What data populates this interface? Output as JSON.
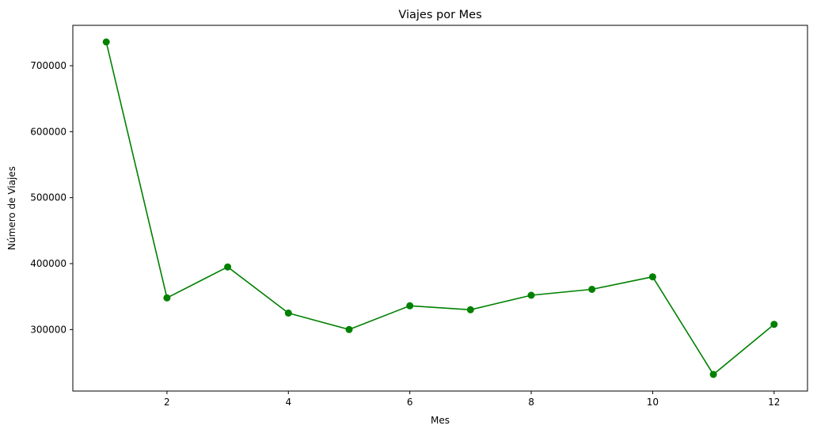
{
  "chart_data": {
    "type": "line",
    "title": "Viajes por Mes",
    "xlabel": "Mes",
    "ylabel": "Número de Viajes",
    "x": [
      1,
      2,
      3,
      4,
      5,
      6,
      7,
      8,
      9,
      10,
      11,
      12
    ],
    "series": [
      {
        "values": [
          736000,
          348000,
          395000,
          325000,
          300000,
          336000,
          330000,
          352000,
          361000,
          380000,
          232000,
          308000
        ],
        "color": "#008000",
        "marker": "circle"
      }
    ],
    "xlim": [
      0.45,
      12.55
    ],
    "ylim": [
      206800,
      761200
    ],
    "xticks": [
      2,
      4,
      6,
      8,
      10,
      12
    ],
    "xtick_labels": [
      "2",
      "4",
      "6",
      "8",
      "10",
      "12"
    ],
    "yticks": [
      300000,
      400000,
      500000,
      600000,
      700000
    ],
    "ytick_labels": [
      "300000",
      "400000",
      "500000",
      "600000",
      "700000"
    ],
    "grid": false,
    "legend": false
  }
}
